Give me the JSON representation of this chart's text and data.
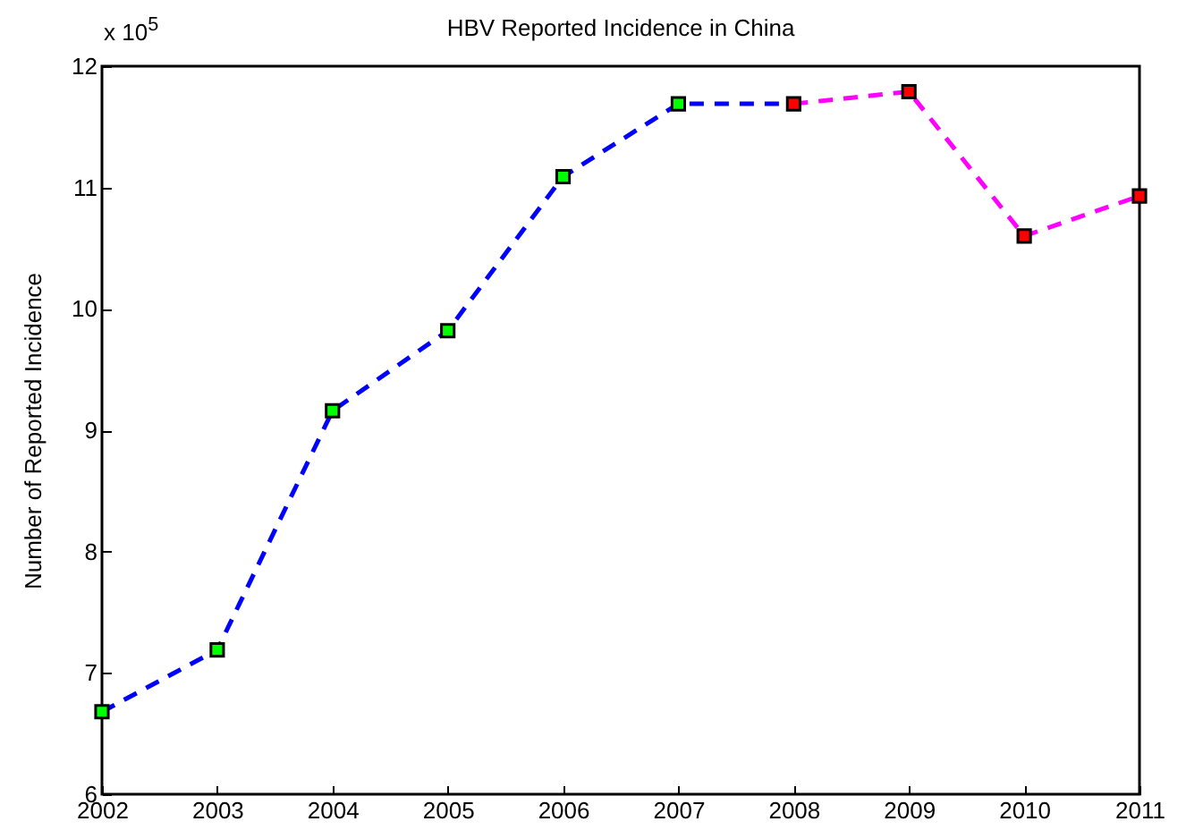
{
  "chart_data": {
    "type": "line",
    "title": "HBV Reported Incidence in China",
    "ylabel": "Number of Reported Incidence",
    "annotations": [
      "x 10$^{5}$"
    ],
    "series": [
      {
        "color": "#0000ff",
        "line_style": "dashed",
        "marker": "none",
        "x": [
          2002,
          2003,
          2004,
          2005,
          2006,
          2007,
          2008
        ],
        "values": [
          6.68,
          7.19,
          9.16,
          9.82,
          11.09,
          11.69,
          11.69
        ]
      },
      {
        "color": "#ff00ff",
        "line_style": "dashed",
        "marker": "none",
        "x": [
          2008,
          2009,
          2010,
          2011
        ],
        "values": [
          11.69,
          11.79,
          10.6,
          10.93
        ]
      },
      {
        "type": "scatter",
        "color": "#00ff00",
        "marker": "square",
        "x": [
          2002,
          2003,
          2004,
          2005,
          2006,
          2007
        ],
        "values": [
          6.68,
          7.19,
          9.16,
          9.82,
          11.09,
          11.69
        ]
      },
      {
        "type": "scatter",
        "color": "#ff0000",
        "marker": "square",
        "x": [
          2008,
          2009,
          2010,
          2011
        ],
        "values": [
          11.69,
          11.79,
          10.6,
          10.93
        ]
      }
    ],
    "xlim": [
      2002,
      2011
    ],
    "xticks": [
      2002,
      2003,
      2004,
      2005,
      2006,
      2007,
      2008,
      2009,
      2010,
      2011
    ],
    "ylim": [
      6,
      12
    ],
    "yticks": [
      6,
      7,
      8,
      9,
      10,
      11,
      12
    ],
    "grid": false
  }
}
